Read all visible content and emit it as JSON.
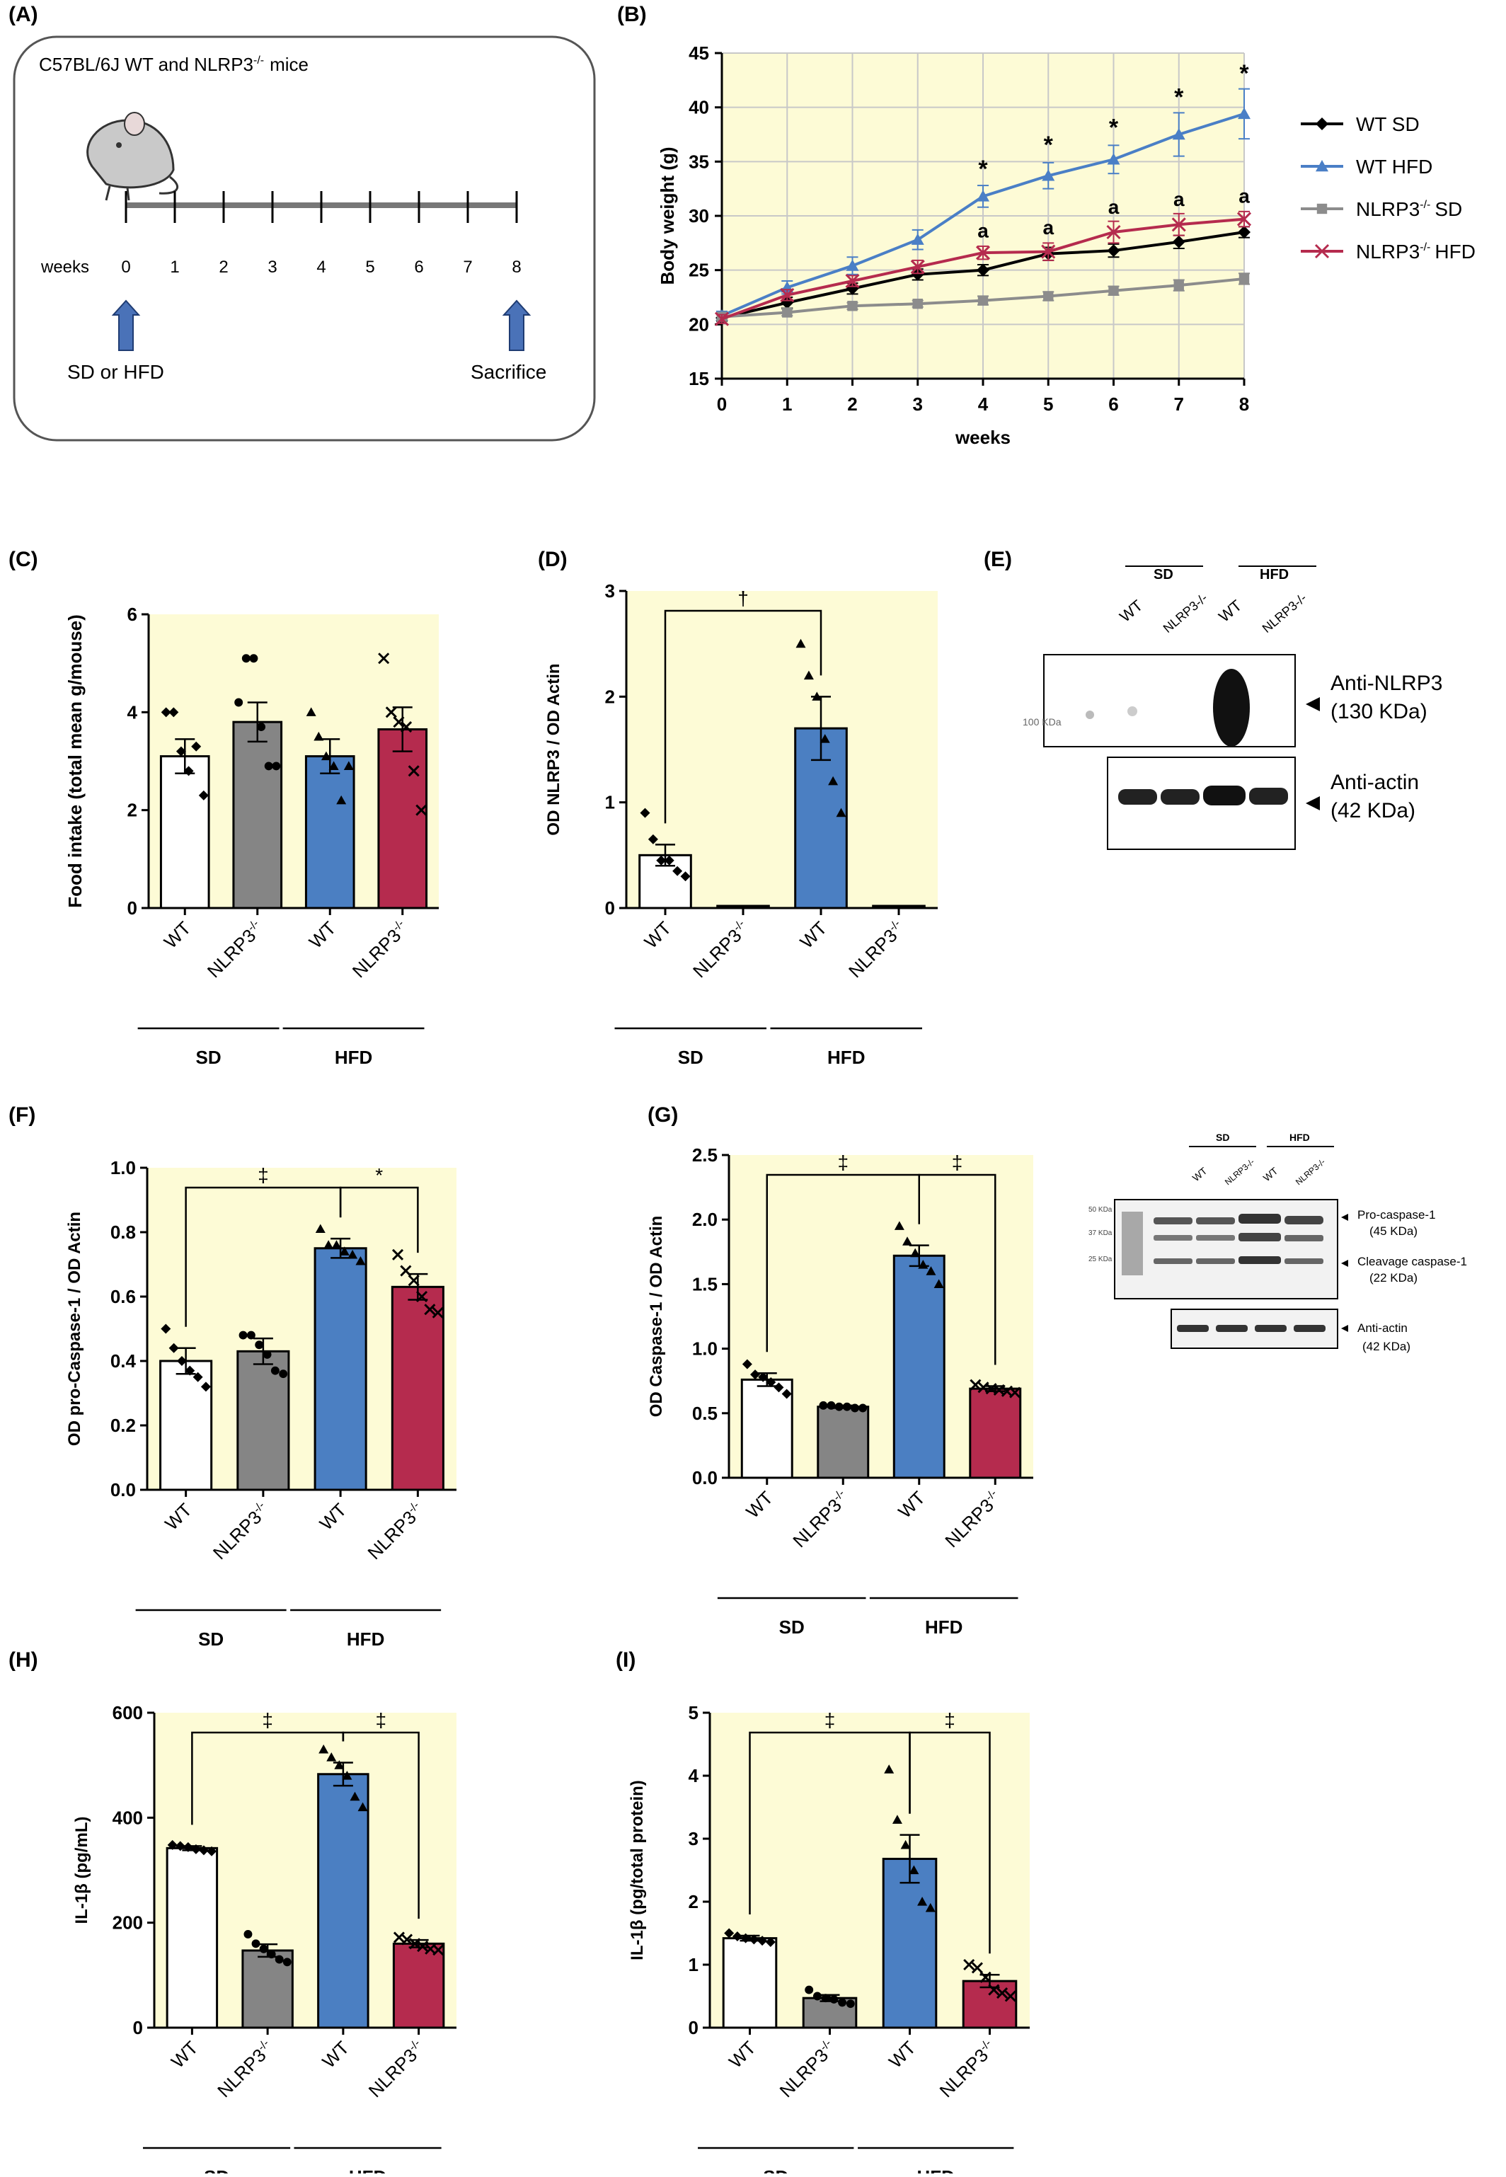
{
  "panels": {
    "A": {
      "letter": "(A)",
      "mice_label": "C57BL/6J WT and NLRP3",
      "mice_sup": "-/-",
      "mice_suffix": "mice",
      "weeks_label": "weeks",
      "weeks": [
        "0",
        "1",
        "2",
        "3",
        "4",
        "5",
        "6",
        "7",
        "8"
      ],
      "start_label": "SD  or HFD",
      "end_label": "Sacrifice"
    },
    "E": {
      "letter": "(E)",
      "sd_label": "SD",
      "hfd_label": "HFD",
      "lanes": [
        "WT",
        "NLRP3-/-",
        "WT",
        "NLRP3-/-"
      ],
      "marker": "100 KDa",
      "band1_label": "Anti-NLRP3",
      "band1_kda": "(130 KDa)",
      "band2_label": "Anti-actin",
      "band2_kda": "(42 KDa)"
    },
    "G_blot": {
      "sd_label": "SD",
      "hfd_label": "HFD",
      "lanes": [
        "WT",
        "NLRP3-/-",
        "WT",
        "NLRP3-/-"
      ],
      "markers": [
        "50 KDa",
        "37 KDa",
        "25 KDa"
      ],
      "pro_label": "Pro-caspase-1",
      "pro_kda": "(45 KDa)",
      "cleave_label": "Cleavage caspase-1",
      "cleave_kda": "(22 KDa)",
      "actin_label": "Anti-actin",
      "actin_kda": "(42 KDa)"
    }
  },
  "colors": {
    "bg": "#fdfbd6",
    "wt_sd": "#ffffff",
    "ko_sd": "#858585",
    "wt_hfd": "#4b7fc2",
    "ko_hfd": "#b52b4e",
    "line_wt_sd": "#000000",
    "line_wt_hfd": "#4a7fc6",
    "line_ko_sd": "#8c8c8c",
    "line_ko_hfd": "#b52b4e"
  },
  "chart_data": [
    {
      "id": "B",
      "type": "line",
      "letter": "(B)",
      "x": [
        0,
        1,
        2,
        3,
        4,
        5,
        6,
        7,
        8
      ],
      "xlabel": "weeks",
      "ylabel": "Body weight (g)",
      "ylim": [
        15,
        45
      ],
      "yticks": [
        15,
        20,
        25,
        30,
        35,
        40,
        45
      ],
      "grid": true,
      "series": [
        {
          "name": "WT SD",
          "marker": "diamond",
          "values": [
            20.6,
            22.0,
            23.3,
            24.6,
            25.0,
            26.5,
            26.8,
            27.6,
            28.5
          ],
          "err": [
            0.3,
            0.5,
            0.5,
            0.5,
            0.5,
            0.6,
            0.6,
            0.6,
            0.5
          ]
        },
        {
          "name": "WT HFD",
          "marker": "triangle",
          "values": [
            20.8,
            23.4,
            25.4,
            27.8,
            31.8,
            33.7,
            35.2,
            37.5,
            39.4
          ],
          "err": [
            0.4,
            0.6,
            0.8,
            0.9,
            1.0,
            1.2,
            1.3,
            2.0,
            2.3
          ]
        },
        {
          "name": "NLRP3-/- SD",
          "marker": "square",
          "values": [
            20.7,
            21.1,
            21.7,
            21.9,
            22.2,
            22.6,
            23.1,
            23.6,
            24.2
          ],
          "err": [
            0.3,
            0.3,
            0.3,
            0.3,
            0.4,
            0.4,
            0.4,
            0.5,
            0.5
          ]
        },
        {
          "name": "NLRP3-/- HFD",
          "marker": "x",
          "values": [
            20.5,
            22.7,
            24.0,
            25.3,
            26.6,
            26.7,
            28.5,
            29.2,
            29.7
          ],
          "err": [
            0.4,
            0.5,
            0.5,
            0.6,
            0.6,
            0.8,
            1.0,
            1.0,
            0.7
          ]
        }
      ],
      "legend": [
        "WT SD",
        "WT HFD",
        "NLRP3",
        "NLRP3"
      ],
      "legend_sup": [
        "",
        "",
        "-/-",
        "-/-"
      ],
      "legend_suffix": [
        "",
        "",
        "SD",
        "HFD"
      ],
      "legend_position": "right",
      "annotations": [
        {
          "x": 4,
          "text": "*",
          "y": 33.6
        },
        {
          "x": 5,
          "text": "*",
          "y": 35.8
        },
        {
          "x": 6,
          "text": "*",
          "y": 37.4
        },
        {
          "x": 7,
          "text": "*",
          "y": 40.2
        },
        {
          "x": 8,
          "text": "*",
          "y": 42.4
        },
        {
          "x": 4,
          "text": "a",
          "y": 28.0
        },
        {
          "x": 5,
          "text": "a",
          "y": 28.3
        },
        {
          "x": 6,
          "text": "a",
          "y": 30.2
        },
        {
          "x": 7,
          "text": "a",
          "y": 30.9
        },
        {
          "x": 8,
          "text": "a",
          "y": 31.2
        }
      ]
    },
    {
      "id": "C",
      "type": "bar",
      "letter": "(C)",
      "categories": [
        "WT",
        "NLRP3-/-",
        "WT",
        "NLRP3-/-"
      ],
      "groups": [
        "SD",
        "HFD"
      ],
      "ylabel": "Food intake (total mean g/mouse)",
      "ylim": [
        0,
        6
      ],
      "yticks": [
        0,
        2,
        4,
        6
      ],
      "values": [
        3.1,
        3.8,
        3.1,
        3.65
      ],
      "err": [
        0.35,
        0.4,
        0.35,
        0.45
      ],
      "points": [
        [
          4.0,
          4.0,
          3.2,
          2.8,
          3.3,
          2.3
        ],
        [
          4.2,
          5.1,
          5.1,
          3.7,
          2.9,
          2.9
        ],
        [
          4.0,
          3.5,
          3.1,
          2.9,
          2.2,
          2.9
        ],
        [
          5.1,
          4.0,
          3.8,
          3.7,
          2.8,
          2.0
        ]
      ],
      "markers": [
        "diamond",
        "circle",
        "triangle",
        "x"
      ],
      "significance": []
    },
    {
      "id": "D",
      "type": "bar",
      "letter": "(D)",
      "categories": [
        "WT",
        "NLRP3-/-",
        "WT",
        "NLRP3-/-"
      ],
      "groups": [
        "SD",
        "HFD"
      ],
      "ylabel": "OD NLRP3 / OD Actin",
      "ylim": [
        0,
        3
      ],
      "yticks": [
        0,
        1,
        2,
        3
      ],
      "values": [
        0.5,
        0.02,
        1.7,
        0.02
      ],
      "err": [
        0.1,
        0.0,
        0.3,
        0.0
      ],
      "points": [
        [
          0.9,
          0.65,
          0.45,
          0.45,
          0.35,
          0.3
        ],
        [],
        [
          2.5,
          2.2,
          2.0,
          1.6,
          1.2,
          0.9
        ],
        []
      ],
      "markers": [
        "diamond",
        "circle",
        "triangle",
        "x"
      ],
      "significance": [
        {
          "from": 0,
          "to": 2,
          "text": "†"
        }
      ]
    },
    {
      "id": "F",
      "type": "bar",
      "letter": "(F)",
      "categories": [
        "WT",
        "NLRP3-/-",
        "WT",
        "NLRP3-/-"
      ],
      "groups": [
        "SD",
        "HFD"
      ],
      "ylabel": "OD pro-Caspase-1 / OD Actin",
      "ylim": [
        0,
        1.0
      ],
      "yticks": [
        0.0,
        0.2,
        0.4,
        0.6,
        0.8,
        1.0
      ],
      "values": [
        0.4,
        0.43,
        0.75,
        0.63
      ],
      "err": [
        0.04,
        0.04,
        0.03,
        0.04
      ],
      "points": [
        [
          0.5,
          0.44,
          0.4,
          0.37,
          0.35,
          0.32
        ],
        [
          0.48,
          0.48,
          0.45,
          0.42,
          0.37,
          0.36
        ],
        [
          0.81,
          0.76,
          0.76,
          0.74,
          0.73,
          0.71
        ],
        [
          0.73,
          0.68,
          0.65,
          0.6,
          0.56,
          0.55
        ]
      ],
      "markers": [
        "diamond",
        "circle",
        "triangle",
        "x"
      ],
      "significance": [
        {
          "from": 0,
          "to": 2,
          "text": "‡"
        },
        {
          "from": 2,
          "to": 3,
          "text": "*"
        }
      ]
    },
    {
      "id": "G",
      "type": "bar",
      "letter": "(G)",
      "categories": [
        "WT",
        "NLRP3-/-",
        "WT",
        "NLRP3-/-"
      ],
      "groups": [
        "SD",
        "HFD"
      ],
      "ylabel": "OD Caspase-1 / OD Actin",
      "ylim": [
        0,
        2.5
      ],
      "yticks": [
        0.0,
        0.5,
        1.0,
        1.5,
        2.0,
        2.5
      ],
      "values": [
        0.76,
        0.55,
        1.72,
        0.69
      ],
      "err": [
        0.05,
        0.01,
        0.08,
        0.02
      ],
      "points": [
        [
          0.88,
          0.8,
          0.78,
          0.74,
          0.7,
          0.65
        ],
        [
          0.56,
          0.56,
          0.55,
          0.55,
          0.54,
          0.54
        ],
        [
          1.95,
          1.83,
          1.74,
          1.65,
          1.6,
          1.5
        ],
        [
          0.72,
          0.7,
          0.69,
          0.68,
          0.67,
          0.66
        ]
      ],
      "markers": [
        "diamond",
        "circle",
        "triangle",
        "x"
      ],
      "significance": [
        {
          "from": 0,
          "to": 2,
          "text": "‡"
        },
        {
          "from": 2,
          "to": 3,
          "text": "‡"
        }
      ]
    },
    {
      "id": "H",
      "type": "bar",
      "letter": "(H)",
      "categories": [
        "WT",
        "NLRP3-/-",
        "WT",
        "NLRP3-/-"
      ],
      "groups": [
        "SD",
        "HFD"
      ],
      "ylabel": "IL-1β (pg/mL)",
      "ylim": [
        0,
        600
      ],
      "yticks": [
        0,
        200,
        400,
        600
      ],
      "values": [
        342,
        147,
        483,
        160
      ],
      "err": [
        4,
        12,
        22,
        7
      ],
      "points": [
        [
          348,
          346,
          344,
          340,
          338,
          336
        ],
        [
          178,
          160,
          150,
          140,
          130,
          125
        ],
        [
          530,
          515,
          500,
          480,
          440,
          420
        ],
        [
          172,
          168,
          160,
          155,
          150,
          148
        ]
      ],
      "markers": [
        "diamond",
        "circle",
        "triangle",
        "x"
      ],
      "significance": [
        {
          "from": 0,
          "to": 2,
          "text": "‡"
        },
        {
          "from": 2,
          "to": 3,
          "text": "‡"
        }
      ]
    },
    {
      "id": "I",
      "type": "bar",
      "letter": "(I)",
      "categories": [
        "WT",
        "NLRP3-/-",
        "WT",
        "NLRP3-/-"
      ],
      "groups": [
        "SD",
        "HFD"
      ],
      "ylabel": "IL-1β (pg/total protein)",
      "ylim": [
        0,
        5
      ],
      "yticks": [
        0,
        1,
        2,
        3,
        4,
        5
      ],
      "values": [
        1.42,
        0.47,
        2.68,
        0.74
      ],
      "err": [
        0.04,
        0.05,
        0.38,
        0.1
      ],
      "points": [
        [
          1.5,
          1.45,
          1.42,
          1.4,
          1.38,
          1.36
        ],
        [
          0.6,
          0.5,
          0.47,
          0.45,
          0.4,
          0.38
        ],
        [
          4.1,
          3.3,
          2.9,
          2.5,
          2.0,
          1.9
        ],
        [
          1.0,
          0.95,
          0.8,
          0.6,
          0.55,
          0.5
        ]
      ],
      "markers": [
        "diamond",
        "circle",
        "triangle",
        "x"
      ],
      "significance": [
        {
          "from": 0,
          "to": 2,
          "text": "‡"
        },
        {
          "from": 2,
          "to": 3,
          "text": "‡"
        }
      ]
    }
  ]
}
